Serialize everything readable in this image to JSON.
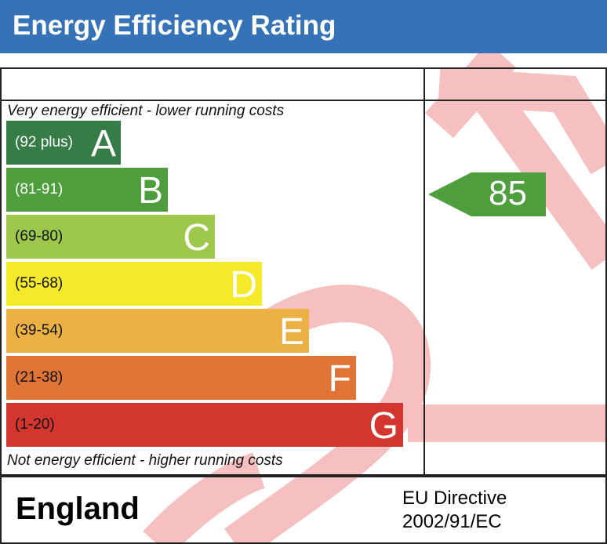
{
  "header": {
    "title": "Energy Efficiency Rating"
  },
  "chart_data": {
    "type": "bar",
    "title": "Energy Efficiency Rating",
    "top_caption": "Very energy efficient - lower running costs",
    "bottom_caption": "Not energy efficient - higher running costs",
    "bands": [
      {
        "letter": "A",
        "range": "(92 plus)",
        "color": "#367c46",
        "dark_text": false
      },
      {
        "letter": "B",
        "range": "(81-91)",
        "color": "#4f9e3d",
        "dark_text": false
      },
      {
        "letter": "C",
        "range": "(69-80)",
        "color": "#9dc84b",
        "dark_text": true
      },
      {
        "letter": "D",
        "range": "(55-68)",
        "color": "#f5ea2a",
        "dark_text": true
      },
      {
        "letter": "E",
        "range": "(39-54)",
        "color": "#ebb145",
        "dark_text": true
      },
      {
        "letter": "F",
        "range": "(21-38)",
        "color": "#df7437",
        "dark_text": true
      },
      {
        "letter": "G",
        "range": "(1-20)",
        "color": "#d2362f",
        "dark_text": true
      }
    ],
    "current": {
      "value": "85",
      "band": "B",
      "color": "#4f9e3d"
    }
  },
  "footer": {
    "country": "England",
    "directive_line1": "EU Directive",
    "directive_line2": "2002/91/EC"
  }
}
